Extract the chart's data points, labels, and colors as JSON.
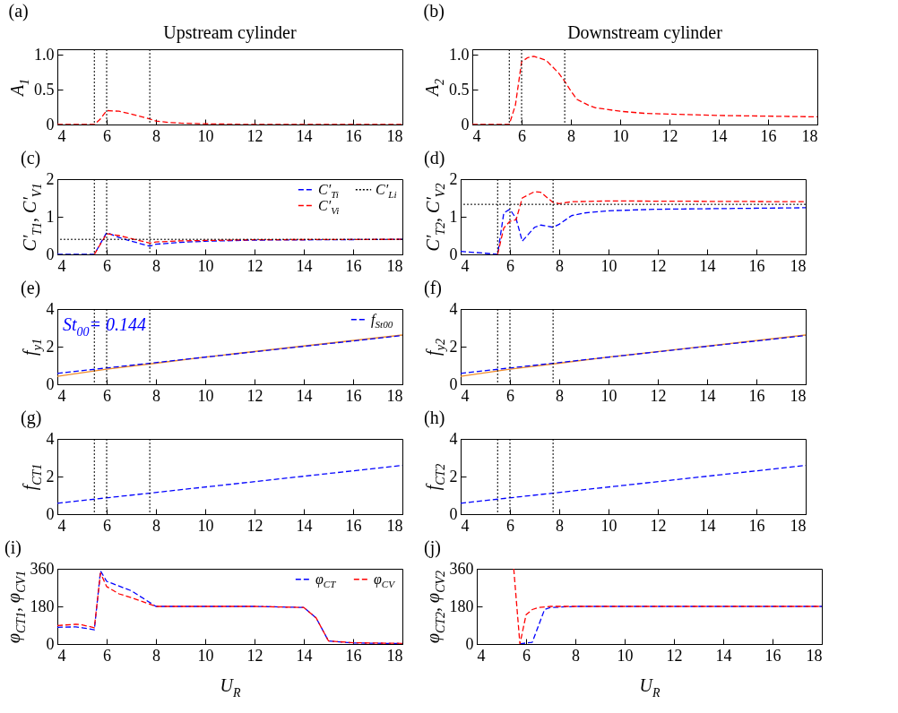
{
  "chart_data": [
    {
      "type": "line",
      "title": "(a)",
      "subtitle": "Upstream cylinder",
      "ylabel": "A$_{1}$",
      "xlim": [
        4,
        18
      ],
      "xticks": [
        4,
        6,
        8,
        10,
        12,
        14,
        16,
        18
      ],
      "ylim": [
        0,
        1.08
      ],
      "yticks": [
        0,
        0.5,
        {
          "value": 1,
          "label": "1.0"
        }
      ],
      "line_style": "dashed",
      "legend": false,
      "series": [
        {
          "color": "#ff0000",
          "x": [
            4,
            5,
            5.5,
            5.75,
            6,
            6.5,
            7,
            7.75,
            8,
            8.5,
            9,
            10,
            12,
            14,
            16,
            18
          ],
          "values": [
            0,
            0,
            0,
            0.08,
            0.2,
            0.19,
            0.15,
            0.08,
            0.05,
            0.03,
            0.02,
            0.01,
            0,
            0,
            0,
            0
          ]
        }
      ],
      "ref_lines": [
        {
          "axis": "x",
          "value": 5.5,
          "color": "#000000",
          "line_style": "dotted"
        },
        {
          "axis": "x",
          "value": 6,
          "color": "#000000",
          "line_style": "dotted"
        },
        {
          "axis": "x",
          "value": 7.75,
          "color": "#000000",
          "line_style": "dotted"
        }
      ]
    },
    {
      "type": "line",
      "title": "(b)",
      "subtitle": "Downstream cylinder",
      "ylabel": "A$_{2}$",
      "xlim": [
        4,
        18
      ],
      "xticks": [
        4,
        6,
        8,
        10,
        12,
        14,
        16,
        18
      ],
      "ylim": [
        0,
        1.08
      ],
      "yticks": [
        0,
        0.5,
        {
          "value": 1,
          "label": "1.0"
        }
      ],
      "line_style": "dashed",
      "legend": false,
      "series": [
        {
          "color": "#ff0000",
          "x": [
            4,
            5,
            5.5,
            5.75,
            6,
            6.25,
            6.5,
            7,
            7.5,
            7.75,
            8,
            8.25,
            8.75,
            9,
            10,
            11,
            12,
            14,
            16,
            18
          ],
          "values": [
            0,
            0,
            0,
            0.28,
            0.9,
            0.96,
            0.98,
            0.92,
            0.74,
            0.62,
            0.48,
            0.36,
            0.27,
            0.24,
            0.19,
            0.16,
            0.15,
            0.13,
            0.12,
            0.11
          ]
        }
      ],
      "ref_lines": [
        {
          "axis": "x",
          "value": 5.5,
          "color": "#000000",
          "line_style": "dotted"
        },
        {
          "axis": "x",
          "value": 6,
          "color": "#000000",
          "line_style": "dotted"
        },
        {
          "axis": "x",
          "value": 7.75,
          "color": "#000000",
          "line_style": "dotted"
        }
      ]
    },
    {
      "type": "line",
      "title": "(c)",
      "ylabel": "C′$_{T1}$, C′$_{V1}$",
      "xlim": [
        4,
        18
      ],
      "xticks": [
        4,
        6,
        8,
        10,
        12,
        14,
        16,
        18
      ],
      "ylim": [
        0,
        2
      ],
      "yticks": [
        0,
        1,
        2
      ],
      "line_style": "dashed",
      "legend": "top right",
      "series": [
        {
          "name": "C′$_{Ti}$",
          "color": "#0000ff",
          "x": [
            4,
            5.5,
            6,
            6.5,
            7,
            7.75,
            8,
            9,
            10,
            12,
            18
          ],
          "values": [
            0,
            0,
            0.58,
            0.45,
            0.35,
            0.22,
            0.27,
            0.32,
            0.35,
            0.38,
            0.4
          ]
        },
        {
          "name": "C′$_{Vi}$",
          "color": "#ff0000",
          "x": [
            5.5,
            6,
            6.5,
            7,
            7.75,
            8,
            9,
            10,
            12,
            18
          ],
          "values": [
            0,
            0.55,
            0.5,
            0.42,
            0.3,
            0.33,
            0.36,
            0.37,
            0.39,
            0.4
          ]
        }
      ],
      "ref_lines": [
        {
          "axis": "x",
          "value": 5.5,
          "color": "#000000",
          "line_style": "dotted"
        },
        {
          "axis": "x",
          "value": 6,
          "color": "#000000",
          "line_style": "dotted"
        },
        {
          "axis": "x",
          "value": 7.75,
          "color": "#000000",
          "line_style": "dotted"
        },
        {
          "axis": "y",
          "value": 0.4,
          "label": "C′$_{Li}$",
          "color": "#000000",
          "line_style": "dotted"
        }
      ]
    },
    {
      "type": "line",
      "title": "(d)",
      "ylabel": "C′$_{T2}$, C′$_{V2}$",
      "xlim": [
        4,
        18
      ],
      "xticks": [
        4,
        6,
        8,
        10,
        12,
        14,
        16,
        18
      ],
      "ylim": [
        0,
        2
      ],
      "yticks": [
        0,
        1,
        2
      ],
      "line_style": "dashed",
      "legend": false,
      "series": [
        {
          "color": "#0000ff",
          "x": [
            4,
            5,
            5.5,
            5.75,
            6,
            6.25,
            6.5,
            7,
            7.25,
            7.75,
            8,
            8.5,
            9,
            10,
            12,
            18
          ],
          "values": [
            0.08,
            0.03,
            0,
            1.1,
            1.2,
            0.95,
            0.35,
            0.72,
            0.78,
            0.72,
            0.8,
            1.03,
            1.1,
            1.16,
            1.2,
            1.24
          ]
        },
        {
          "color": "#ff0000",
          "x": [
            5.5,
            5.75,
            6,
            6.25,
            6.5,
            7,
            7.25,
            7.75,
            8,
            8.5,
            10,
            18
          ],
          "values": [
            0,
            0.7,
            0.88,
            0.92,
            1.5,
            1.67,
            1.65,
            1.38,
            1.35,
            1.4,
            1.42,
            1.4
          ]
        }
      ],
      "ref_lines": [
        {
          "axis": "x",
          "value": 5.5,
          "color": "#000000",
          "line_style": "dotted"
        },
        {
          "axis": "x",
          "value": 6,
          "color": "#000000",
          "line_style": "dotted"
        },
        {
          "axis": "x",
          "value": 7.75,
          "color": "#000000",
          "line_style": "dotted"
        },
        {
          "axis": "y",
          "value": 1.33,
          "color": "#000000",
          "line_style": "dotted"
        }
      ]
    },
    {
      "type": "line",
      "title": "(e)",
      "ylabel": "f$_{y1}$",
      "xlim": [
        4,
        18
      ],
      "xticks": [
        4,
        6,
        8,
        10,
        12,
        14,
        16,
        18
      ],
      "ylim": [
        0,
        4
      ],
      "yticks": [
        0,
        2,
        4
      ],
      "line_style": "dashed",
      "legend": "top right",
      "annotations": [
        "St$_{00}$= 0.144"
      ],
      "series": [
        {
          "color": "#f08c28",
          "line_style": "solid",
          "x": [
            4,
            6,
            8,
            10,
            18
          ],
          "values": [
            0.42,
            0.8,
            1.12,
            1.45,
            2.62
          ]
        },
        {
          "name": "f$_{St00}$",
          "color": "#0000ff",
          "x": [
            4,
            18
          ],
          "values": [
            0.58,
            2.59
          ]
        }
      ],
      "ref_lines": [
        {
          "axis": "x",
          "value": 5.5,
          "color": "#000000",
          "line_style": "dotted"
        },
        {
          "axis": "x",
          "value": 6,
          "color": "#000000",
          "line_style": "dotted"
        },
        {
          "axis": "x",
          "value": 7.75,
          "color": "#000000",
          "line_style": "dotted"
        }
      ]
    },
    {
      "type": "line",
      "title": "(f)",
      "ylabel": "f$_{y2}$",
      "xlim": [
        4,
        18
      ],
      "xticks": [
        4,
        6,
        8,
        10,
        12,
        14,
        16,
        18
      ],
      "ylim": [
        0,
        4
      ],
      "yticks": [
        0,
        2,
        4
      ],
      "line_style": "dashed",
      "legend": false,
      "series": [
        {
          "color": "#f08c28",
          "line_style": "solid",
          "x": [
            4,
            6,
            8,
            10,
            18
          ],
          "values": [
            0.42,
            0.8,
            1.12,
            1.45,
            2.62
          ]
        },
        {
          "color": "#0000ff",
          "x": [
            4,
            18
          ],
          "values": [
            0.58,
            2.59
          ]
        }
      ],
      "ref_lines": [
        {
          "axis": "x",
          "value": 5.5,
          "color": "#000000",
          "line_style": "dotted"
        },
        {
          "axis": "x",
          "value": 6,
          "color": "#000000",
          "line_style": "dotted"
        },
        {
          "axis": "x",
          "value": 7.75,
          "color": "#000000",
          "line_style": "dotted"
        }
      ]
    },
    {
      "type": "line",
      "title": "(g)",
      "ylabel": "f$_{CT1}$",
      "xlim": [
        4,
        18
      ],
      "xticks": [
        4,
        6,
        8,
        10,
        12,
        14,
        16,
        18
      ],
      "ylim": [
        0,
        4
      ],
      "yticks": [
        0,
        2,
        4
      ],
      "line_style": "dashed",
      "legend": false,
      "series": [
        {
          "color": "#0000ff",
          "x": [
            4,
            18
          ],
          "values": [
            0.58,
            2.59
          ]
        }
      ],
      "ref_lines": [
        {
          "axis": "x",
          "value": 5.5,
          "color": "#000000",
          "line_style": "dotted"
        },
        {
          "axis": "x",
          "value": 6,
          "color": "#000000",
          "line_style": "dotted"
        },
        {
          "axis": "x",
          "value": 7.75,
          "color": "#000000",
          "line_style": "dotted"
        }
      ]
    },
    {
      "type": "line",
      "title": "(h)",
      "ylabel": "f$_{CT2}$",
      "xlim": [
        4,
        18
      ],
      "xticks": [
        4,
        6,
        8,
        10,
        12,
        14,
        16,
        18
      ],
      "ylim": [
        0,
        4
      ],
      "yticks": [
        0,
        2,
        4
      ],
      "line_style": "dashed",
      "legend": false,
      "series": [
        {
          "color": "#0000ff",
          "x": [
            4,
            18
          ],
          "values": [
            0.58,
            2.59
          ]
        }
      ],
      "ref_lines": [
        {
          "axis": "x",
          "value": 5.5,
          "color": "#000000",
          "line_style": "dotted"
        },
        {
          "axis": "x",
          "value": 6,
          "color": "#000000",
          "line_style": "dotted"
        },
        {
          "axis": "x",
          "value": 7.75,
          "color": "#000000",
          "line_style": "dotted"
        }
      ]
    },
    {
      "type": "line",
      "title": "(i)",
      "xlabel": "U$_{R}$",
      "ylabel": "φ$_{CT1}$, φ$_{CV1}$",
      "xlim": [
        4,
        18
      ],
      "xticks": [
        4,
        6,
        8,
        10,
        12,
        14,
        16,
        18
      ],
      "ylim": [
        0,
        360
      ],
      "yticks": [
        0,
        180,
        360
      ],
      "line_style": "dashed",
      "legend": "top right",
      "series": [
        {
          "name": "φ$_{CT}$",
          "color": "#0000ff",
          "x": [
            4,
            4.75,
            5,
            5.5,
            5.75,
            6,
            7,
            8,
            10,
            12,
            14,
            14.5,
            15,
            16,
            18
          ],
          "values": [
            80,
            82,
            78,
            68,
            350,
            300,
            255,
            180,
            180,
            180,
            175,
            125,
            15,
            5,
            2
          ]
        },
        {
          "name": "φ$_{CV}$",
          "color": "#ff0000",
          "x": [
            4,
            4.75,
            5,
            5.5,
            5.75,
            6,
            6.5,
            7,
            8,
            10,
            12,
            14,
            14.5,
            15,
            16,
            18
          ],
          "values": [
            88,
            95,
            92,
            78,
            340,
            275,
            240,
            222,
            180,
            180,
            180,
            175,
            125,
            15,
            6,
            3
          ]
        }
      ]
    },
    {
      "type": "line",
      "title": "(j)",
      "xlabel": "U$_{R}$",
      "ylabel": "φ$_{CT2}$, φ$_{CV2}$",
      "xlim": [
        4,
        18
      ],
      "xticks": [
        4,
        6,
        8,
        10,
        12,
        14,
        16,
        18
      ],
      "ylim": [
        0,
        360
      ],
      "yticks": [
        0,
        180,
        360
      ],
      "line_style": "dashed",
      "legend": false,
      "series": [
        {
          "color": "#0000ff",
          "x": [
            5.75,
            6,
            6.25,
            6.75,
            7,
            8,
            18
          ],
          "values": [
            0,
            5,
            8,
            165,
            175,
            180,
            180
          ]
        },
        {
          "color": "#ff0000",
          "x": [
            5.5,
            5.75,
            6,
            6.25,
            6.5,
            7,
            8,
            18
          ],
          "values": [
            360,
            0,
            140,
            165,
            175,
            180,
            180,
            180
          ]
        }
      ]
    }
  ]
}
